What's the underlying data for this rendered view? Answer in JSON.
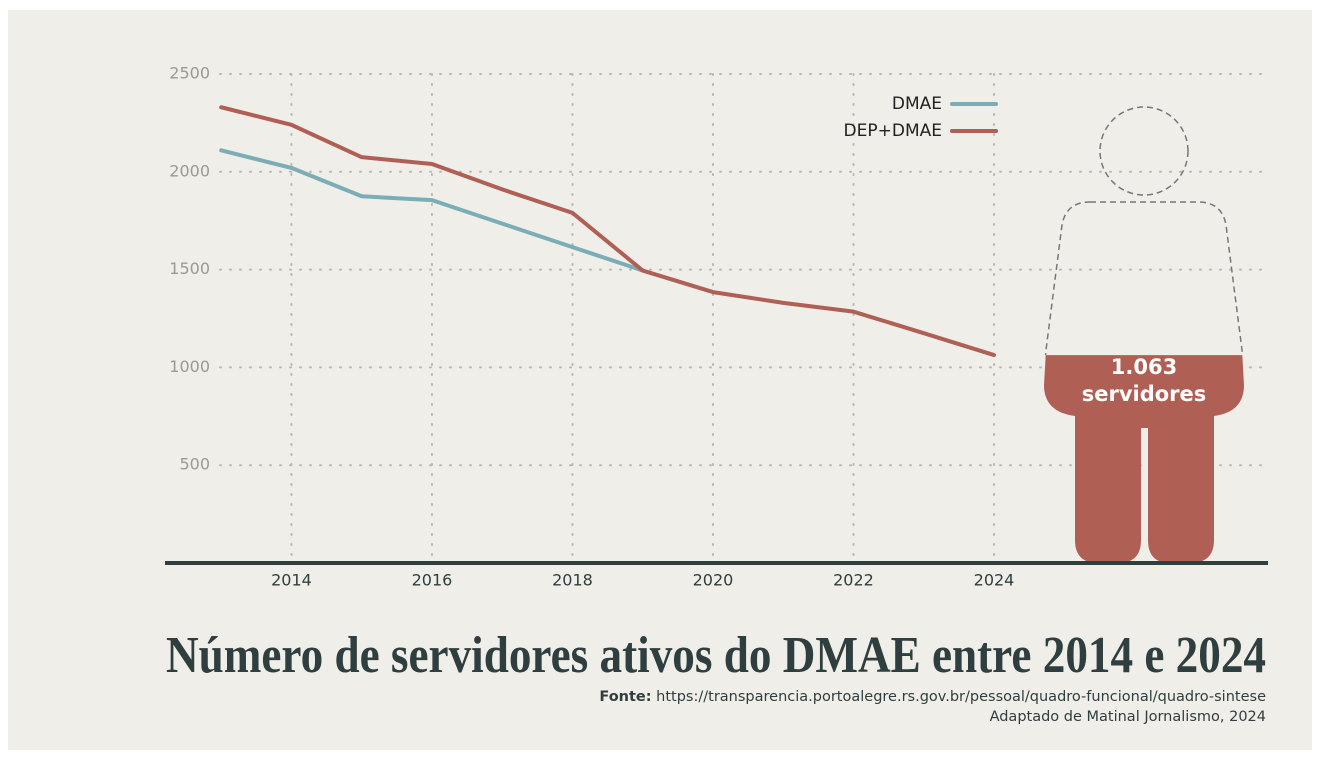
{
  "chart_data": {
    "type": "line",
    "title": "Número de servidores ativos do DMAE entre 2014 e 2024",
    "source_label": "Fonte:",
    "source": "https://transparencia.portoalegre.rs.gov.br/pessoal/quadro-funcional/quadro-sintese",
    "credit": "Adaptado de Matinal Jornalismo, 2024",
    "annotation": [
      "1.063",
      "servidores"
    ],
    "x": [
      2013,
      2014,
      2015,
      2016,
      2017,
      2018,
      2019,
      2020,
      2021,
      2022,
      2023,
      2024
    ],
    "series": [
      {
        "name": "DMAE",
        "color": "#7aadb5",
        "values": [
          2110,
          2020,
          1875,
          1855,
          1735,
          1615,
          1495,
          null,
          null,
          null,
          null,
          null
        ]
      },
      {
        "name": "DEP+DMAE",
        "color": "#b05f55",
        "values": [
          2330,
          2240,
          2075,
          2040,
          1910,
          1790,
          1495,
          1385,
          1330,
          1285,
          1175,
          1063
        ]
      }
    ],
    "xlim": [
      2012.2,
      2027.9
    ],
    "xticks": [
      2014,
      2016,
      2018,
      2020,
      2022,
      2024
    ],
    "ylim": [
      0,
      2500
    ],
    "yticks": [
      500,
      1000,
      1500,
      2000,
      2500
    ],
    "grid": true,
    "legend": "upper right"
  }
}
